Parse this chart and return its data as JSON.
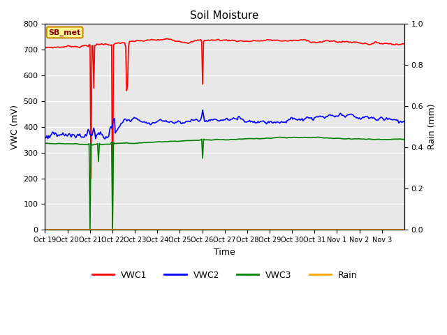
{
  "title": "Soil Moisture",
  "xlabel": "Time",
  "ylabel_left": "VWC (mV)",
  "ylabel_right": "Rain (mm)",
  "x_tick_labels": [
    "Oct 19",
    "Oct 20",
    "Oct 21",
    "Oct 22",
    "Oct 23",
    "Oct 24",
    "Oct 25",
    "Oct 26",
    "Oct 27",
    "Oct 28",
    "Oct 29",
    "Oct 30",
    "Oct 31",
    "Nov 1",
    "Nov 2",
    "Nov 3"
  ],
  "ylim_left": [
    0,
    800
  ],
  "ylim_right": [
    0.0,
    1.0
  ],
  "yticks_left": [
    0,
    100,
    200,
    300,
    400,
    500,
    600,
    700,
    800
  ],
  "yticks_right": [
    0.0,
    0.2,
    0.4,
    0.6,
    0.8,
    1.0
  ],
  "background_color": "#e8e8e8",
  "annotation_text": "SB_met",
  "annotation_box_color": "#ffff99",
  "annotation_box_border": "#cc8800",
  "vwc1_color": "red",
  "vwc2_color": "blue",
  "vwc3_color": "green",
  "rain_color": "#FFA500",
  "line_width": 1.2
}
